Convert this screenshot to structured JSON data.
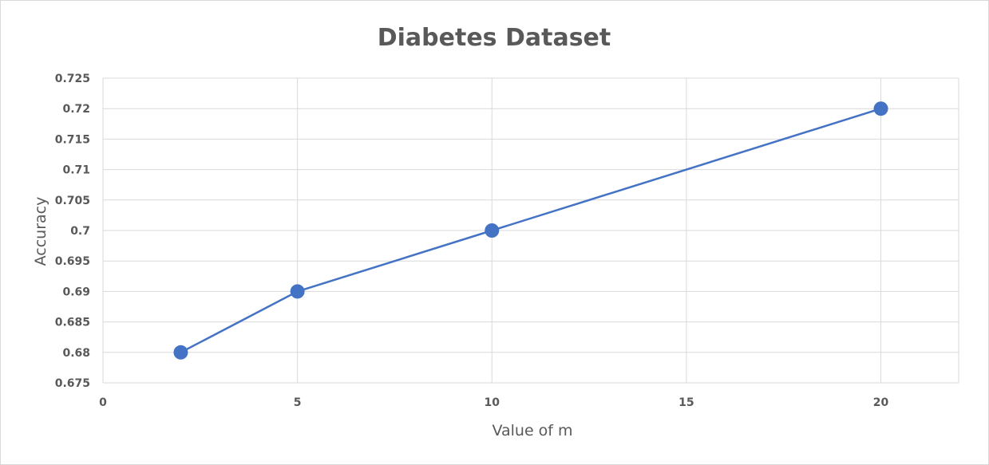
{
  "chart_data": {
    "type": "scatter",
    "title": "Diabetes Dataset",
    "xlabel": "Value of m",
    "ylabel": "Accuracy",
    "xlim": [
      0,
      22
    ],
    "ylim": [
      0.675,
      0.725
    ],
    "x_ticks": [
      0,
      5,
      10,
      15,
      20
    ],
    "x_tick_labels": [
      "0",
      "5",
      "10",
      "15",
      "20"
    ],
    "y_ticks": [
      0.675,
      0.68,
      0.685,
      0.69,
      0.695,
      0.7,
      0.705,
      0.71,
      0.715,
      0.72,
      0.725
    ],
    "y_tick_labels": [
      "0.675",
      "0.68",
      "0.685",
      "0.69",
      "0.695",
      "0.7",
      "0.705",
      "0.71",
      "0.715",
      "0.72",
      "0.725"
    ],
    "grid": true,
    "legend": "none",
    "series": [
      {
        "x": [
          2,
          5,
          10,
          20
        ],
        "y": [
          0.68,
          0.69,
          0.7,
          0.72
        ],
        "color": "#4472c4",
        "markers": true,
        "connected": true
      }
    ]
  }
}
